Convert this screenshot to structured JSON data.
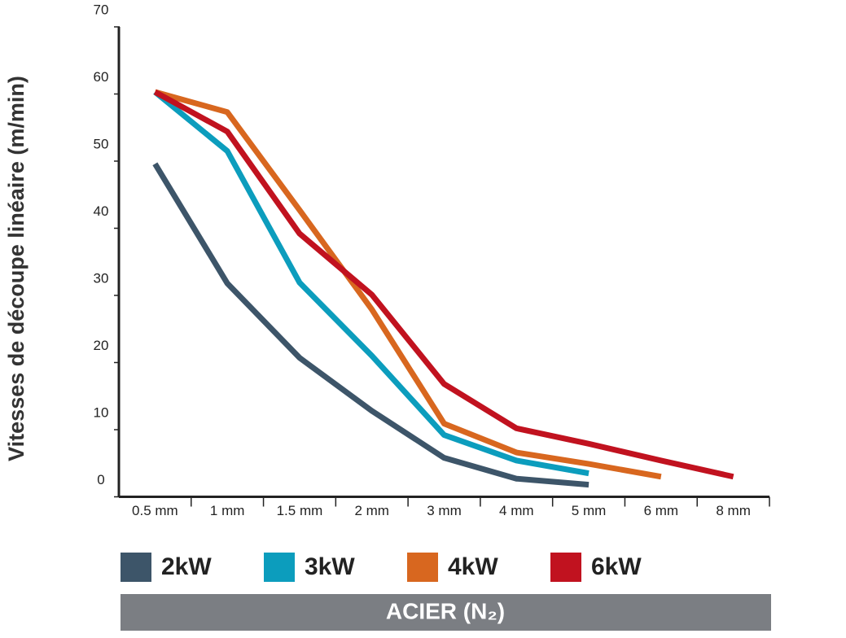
{
  "chart_data": {
    "type": "line",
    "ylabel": "Vitesses de découpe linéaire (m/min)",
    "xlabel": "ACIER (N₂)",
    "categories": [
      "0.5 mm",
      "1 mm",
      "1.5 mm",
      "2 mm",
      "3 mm",
      "4 mm",
      "5 mm",
      "6 mm",
      "8 mm"
    ],
    "series": [
      {
        "name": "2kW",
        "color": "#3d5569",
        "values": [
          49.6,
          31.8,
          20.7,
          12.8,
          5.8,
          2.7,
          1.8,
          null,
          null
        ]
      },
      {
        "name": "3kW",
        "color": "#0c9dbd",
        "values": [
          60.3,
          51.5,
          31.9,
          21,
          9.2,
          5.4,
          3.5,
          null,
          null
        ]
      },
      {
        "name": "4kW",
        "color": "#d8671f",
        "values": [
          60.3,
          57.3,
          42.7,
          27.9,
          10.9,
          6.6,
          4.9,
          3.0,
          null
        ]
      },
      {
        "name": "6kW",
        "color": "#c1121f",
        "values": [
          60.3,
          54.4,
          39.2,
          30.1,
          16.8,
          10.2,
          7.9,
          5.4,
          3.0
        ]
      }
    ],
    "ylim": [
      0,
      70
    ],
    "yticks": [
      0,
      10,
      20,
      30,
      40,
      50,
      60,
      70
    ]
  }
}
